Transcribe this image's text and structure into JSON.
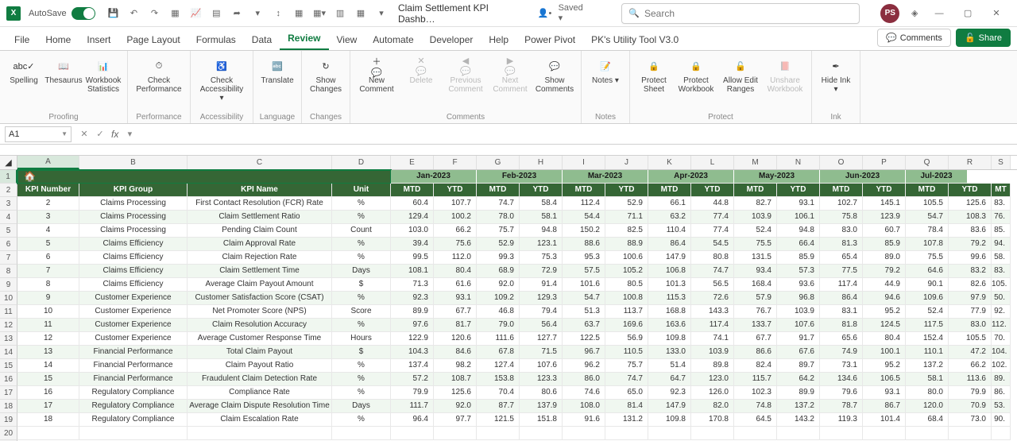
{
  "title_bar": {
    "autosave": "AutoSave",
    "doc_title": "Claim Settlement KPI Dashb…",
    "saved": "Saved ▾",
    "search_placeholder": "Search",
    "avatar": "PS"
  },
  "tabs": {
    "items": [
      "File",
      "Home",
      "Insert",
      "Page Layout",
      "Formulas",
      "Data",
      "Review",
      "View",
      "Automate",
      "Developer",
      "Help",
      "Power Pivot",
      "PK's Utility Tool V3.0"
    ],
    "active_index": 6,
    "comments": "Comments",
    "share": "Share"
  },
  "ribbon": {
    "groups": [
      {
        "name": "Proofing",
        "items": [
          {
            "label": "Spelling",
            "icon": "abc✓",
            "w": "narrow"
          },
          {
            "label": "Thesaurus",
            "icon": "📖",
            "w": "narrow"
          },
          {
            "label": "Workbook Statistics",
            "icon": "📊",
            "w": "narrow"
          }
        ]
      },
      {
        "name": "Performance",
        "items": [
          {
            "label": "Check Performance",
            "icon": "⏱",
            "w": "wide"
          }
        ]
      },
      {
        "name": "Accessibility",
        "items": [
          {
            "label": "Check Accessibility ▾",
            "icon": "♿",
            "w": "wide"
          }
        ]
      },
      {
        "name": "Language",
        "items": [
          {
            "label": "Translate",
            "icon": "🔤",
            "w": "narrow"
          }
        ]
      },
      {
        "name": "Changes",
        "items": [
          {
            "label": "Show Changes",
            "icon": "↻",
            "w": "narrow"
          }
        ]
      },
      {
        "name": "Comments",
        "items": [
          {
            "label": "New Comment",
            "icon": "＋💬",
            "w": ""
          },
          {
            "label": "Delete",
            "icon": "✕💬",
            "w": "",
            "disabled": true
          },
          {
            "label": "Previous Comment",
            "icon": "◀💬",
            "w": "",
            "disabled": true
          },
          {
            "label": "Next Comment",
            "icon": "▶💬",
            "w": "",
            "disabled": true
          },
          {
            "label": "Show Comments",
            "icon": "💬",
            "w": ""
          }
        ]
      },
      {
        "name": "Notes",
        "items": [
          {
            "label": "Notes ▾",
            "icon": "📝",
            "w": "narrow"
          }
        ]
      },
      {
        "name": "Protect",
        "items": [
          {
            "label": "Protect Sheet",
            "icon": "🔒",
            "w": "narrow"
          },
          {
            "label": "Protect Workbook",
            "icon": "🔒",
            "w": ""
          },
          {
            "label": "Allow Edit Ranges",
            "icon": "🔓",
            "w": ""
          },
          {
            "label": "Unshare Workbook",
            "icon": "📕",
            "w": "",
            "disabled": true
          }
        ]
      },
      {
        "name": "Ink",
        "items": [
          {
            "label": "Hide Ink ▾",
            "icon": "✒",
            "w": "narrow"
          }
        ]
      }
    ]
  },
  "formula": {
    "name_box": "A1"
  },
  "grid": {
    "col_letters": [
      "A",
      "B",
      "C",
      "D",
      "E",
      "F",
      "G",
      "H",
      "I",
      "J",
      "K",
      "L",
      "M",
      "N",
      "O",
      "P",
      "Q",
      "R",
      "S"
    ],
    "col_widths_class": [
      "cA",
      "cB",
      "cC",
      "cD",
      "cN",
      "cN",
      "cN",
      "cN",
      "cN",
      "cN",
      "cN",
      "cN",
      "cN",
      "cN",
      "cN",
      "cN",
      "cN",
      "cN",
      "cLast"
    ],
    "selected_col": "A",
    "selected_row": 1,
    "months": [
      "Jan-2023",
      "Feb-2023",
      "Mar-2023",
      "Apr-2023",
      "May-2023",
      "Jun-2023",
      "Jul-2023"
    ],
    "hdr2": [
      "KPI Number",
      "KPI Group",
      "KPI Name",
      "Unit",
      "MTD",
      "YTD",
      "MTD",
      "YTD",
      "MTD",
      "YTD",
      "MTD",
      "YTD",
      "MTD",
      "YTD",
      "MTD",
      "YTD",
      "MTD",
      "YTD",
      "MT"
    ],
    "rows": [
      {
        "n": "2",
        "g": "Claims Processing",
        "name": "First Contact Resolution (FCR) Rate",
        "unit": "%",
        "v": [
          "60.4",
          "107.7",
          "74.7",
          "58.4",
          "112.4",
          "52.9",
          "66.1",
          "44.8",
          "82.7",
          "93.1",
          "102.7",
          "145.1",
          "105.5",
          "125.6",
          "83."
        ]
      },
      {
        "n": "3",
        "g": "Claims Processing",
        "name": "Claim Settlement Ratio",
        "unit": "%",
        "v": [
          "129.4",
          "100.2",
          "78.0",
          "58.1",
          "54.4",
          "71.1",
          "63.2",
          "77.4",
          "103.9",
          "106.1",
          "75.8",
          "123.9",
          "54.7",
          "108.3",
          "76."
        ]
      },
      {
        "n": "4",
        "g": "Claims Processing",
        "name": "Pending Claim Count",
        "unit": "Count",
        "v": [
          "103.0",
          "66.2",
          "75.7",
          "94.8",
          "150.2",
          "82.5",
          "110.4",
          "77.4",
          "52.4",
          "94.8",
          "83.0",
          "60.7",
          "78.4",
          "83.6",
          "85."
        ]
      },
      {
        "n": "5",
        "g": "Claims Efficiency",
        "name": "Claim Approval Rate",
        "unit": "%",
        "v": [
          "39.4",
          "75.6",
          "52.9",
          "123.1",
          "88.6",
          "88.9",
          "86.4",
          "54.5",
          "75.5",
          "66.4",
          "81.3",
          "85.9",
          "107.8",
          "79.2",
          "94."
        ]
      },
      {
        "n": "6",
        "g": "Claims Efficiency",
        "name": "Claim Rejection Rate",
        "unit": "%",
        "v": [
          "99.5",
          "112.0",
          "99.3",
          "75.3",
          "95.3",
          "100.6",
          "147.9",
          "80.8",
          "131.5",
          "85.9",
          "65.4",
          "89.0",
          "75.5",
          "99.6",
          "58."
        ]
      },
      {
        "n": "7",
        "g": "Claims Efficiency",
        "name": "Claim Settlement Time",
        "unit": "Days",
        "v": [
          "108.1",
          "80.4",
          "68.9",
          "72.9",
          "57.5",
          "105.2",
          "106.8",
          "74.7",
          "93.4",
          "57.3",
          "77.5",
          "79.2",
          "64.6",
          "83.2",
          "83."
        ]
      },
      {
        "n": "8",
        "g": "Claims Efficiency",
        "name": "Average Claim Payout Amount",
        "unit": "$",
        "v": [
          "71.3",
          "61.6",
          "92.0",
          "91.4",
          "101.6",
          "80.5",
          "101.3",
          "56.5",
          "168.4",
          "93.6",
          "117.4",
          "44.9",
          "90.1",
          "82.6",
          "105."
        ]
      },
      {
        "n": "9",
        "g": "Customer Experience",
        "name": "Customer Satisfaction Score (CSAT)",
        "unit": "%",
        "v": [
          "92.3",
          "93.1",
          "109.2",
          "129.3",
          "54.7",
          "100.8",
          "115.3",
          "72.6",
          "57.9",
          "96.8",
          "86.4",
          "94.6",
          "109.6",
          "97.9",
          "50."
        ]
      },
      {
        "n": "10",
        "g": "Customer Experience",
        "name": "Net Promoter Score (NPS)",
        "unit": "Score",
        "v": [
          "89.9",
          "67.7",
          "46.8",
          "79.4",
          "51.3",
          "113.7",
          "168.8",
          "143.3",
          "76.7",
          "103.9",
          "83.1",
          "95.2",
          "52.4",
          "77.9",
          "92."
        ]
      },
      {
        "n": "11",
        "g": "Customer Experience",
        "name": "Claim Resolution Accuracy",
        "unit": "%",
        "v": [
          "97.6",
          "81.7",
          "79.0",
          "56.4",
          "63.7",
          "169.6",
          "163.6",
          "117.4",
          "133.7",
          "107.6",
          "81.8",
          "124.5",
          "117.5",
          "83.0",
          "112."
        ]
      },
      {
        "n": "12",
        "g": "Customer Experience",
        "name": "Average Customer Response Time",
        "unit": "Hours",
        "v": [
          "122.9",
          "120.6",
          "111.6",
          "127.7",
          "122.5",
          "56.9",
          "109.8",
          "74.1",
          "67.7",
          "91.7",
          "65.6",
          "80.4",
          "152.4",
          "105.5",
          "70."
        ]
      },
      {
        "n": "13",
        "g": "Financial Performance",
        "name": "Total Claim Payout",
        "unit": "$",
        "v": [
          "104.3",
          "84.6",
          "67.8",
          "71.5",
          "96.7",
          "110.5",
          "133.0",
          "103.9",
          "86.6",
          "67.6",
          "74.9",
          "100.1",
          "110.1",
          "47.2",
          "104."
        ]
      },
      {
        "n": "14",
        "g": "Financial Performance",
        "name": "Claim Payout Ratio",
        "unit": "%",
        "v": [
          "137.4",
          "98.2",
          "127.4",
          "107.6",
          "96.2",
          "75.7",
          "51.4",
          "89.8",
          "82.4",
          "89.7",
          "73.1",
          "95.2",
          "137.2",
          "66.2",
          "102."
        ]
      },
      {
        "n": "15",
        "g": "Financial Performance",
        "name": "Fraudulent Claim Detection Rate",
        "unit": "%",
        "v": [
          "57.2",
          "108.7",
          "153.8",
          "123.3",
          "86.0",
          "74.7",
          "64.7",
          "123.0",
          "115.7",
          "64.2",
          "134.6",
          "106.5",
          "58.1",
          "113.6",
          "89."
        ]
      },
      {
        "n": "16",
        "g": "Regulatory Compliance",
        "name": "Compliance Rate",
        "unit": "%",
        "v": [
          "79.9",
          "125.6",
          "70.4",
          "80.6",
          "74.6",
          "65.0",
          "92.3",
          "126.0",
          "102.3",
          "89.9",
          "79.6",
          "93.1",
          "80.0",
          "79.9",
          "86."
        ]
      },
      {
        "n": "17",
        "g": "Regulatory Compliance",
        "name": "Average Claim Dispute Resolution Time",
        "unit": "Days",
        "v": [
          "111.7",
          "92.0",
          "87.7",
          "137.9",
          "108.0",
          "81.4",
          "147.9",
          "82.0",
          "74.8",
          "137.2",
          "78.7",
          "86.7",
          "120.0",
          "70.9",
          "53."
        ]
      },
      {
        "n": "18",
        "g": "Regulatory Compliance",
        "name": "Claim Escalation Rate",
        "unit": "%",
        "v": [
          "96.4",
          "97.7",
          "121.5",
          "151.8",
          "91.6",
          "131.2",
          "109.8",
          "170.8",
          "64.5",
          "143.2",
          "119.3",
          "101.4",
          "68.4",
          "73.0",
          "90."
        ]
      }
    ]
  }
}
